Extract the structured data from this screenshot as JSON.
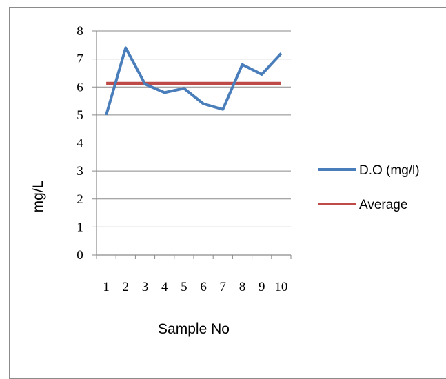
{
  "chart_data": {
    "type": "line",
    "title": "",
    "xlabel": "Sample No",
    "ylabel": "mg/L",
    "categories": [
      "1",
      "2",
      "3",
      "4",
      "5",
      "6",
      "7",
      "8",
      "9",
      "10"
    ],
    "ylim": [
      0,
      8
    ],
    "yticks": [
      "0",
      "1",
      "2",
      "3",
      "4",
      "5",
      "6",
      "7",
      "8"
    ],
    "grid": true,
    "legend": "right",
    "series": [
      {
        "name": "D.O (mg/l)",
        "color": "#4a7ebb",
        "values": [
          5.0,
          7.4,
          6.1,
          5.8,
          5.95,
          5.4,
          5.2,
          6.8,
          6.45,
          7.2
        ]
      },
      {
        "name": "Average",
        "color": "#be4b48",
        "values": [
          6.13,
          6.13,
          6.13,
          6.13,
          6.13,
          6.13,
          6.13,
          6.13,
          6.13,
          6.13
        ]
      }
    ]
  }
}
